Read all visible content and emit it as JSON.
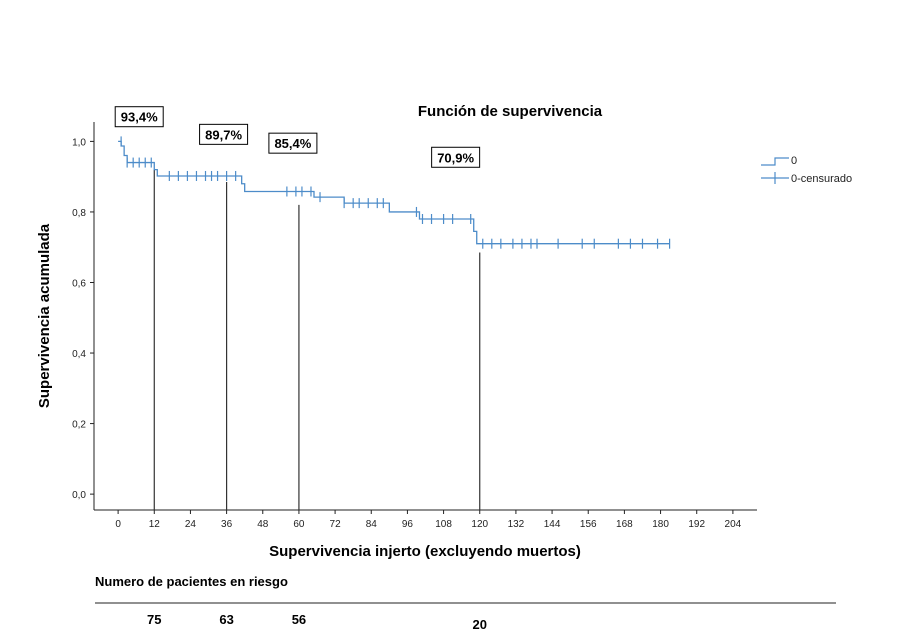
{
  "chart_data": {
    "type": "line",
    "title": "Función de supervivencia",
    "xlabel": "Supervivencia injerto (excluyendo muertos)",
    "ylabel": "Supervivencia acumulada",
    "xlim": [
      -8,
      212
    ],
    "ylim": [
      -0.045,
      1.055
    ],
    "x_ticks": [
      0,
      12,
      24,
      36,
      48,
      60,
      72,
      84,
      96,
      108,
      120,
      132,
      144,
      156,
      168,
      180,
      192,
      204
    ],
    "y_ticks": [
      0.0,
      0.2,
      0.4,
      0.6,
      0.8,
      1.0
    ],
    "y_tick_labels": [
      "0,0",
      "0,2",
      "0,4",
      "0,6",
      "0,8",
      "1,0"
    ],
    "grid": false,
    "legend_position": "top-right",
    "series": [
      {
        "name": "0",
        "color": "#4d8cc9",
        "steps": [
          [
            0,
            1.0
          ],
          [
            1,
            0.987
          ],
          [
            2,
            0.96
          ],
          [
            3,
            0.94
          ],
          [
            12,
            0.92
          ],
          [
            13,
            0.902
          ],
          [
            41,
            0.88
          ],
          [
            42,
            0.858
          ],
          [
            65,
            0.842
          ],
          [
            75,
            0.825
          ],
          [
            90,
            0.8
          ],
          [
            100,
            0.78
          ],
          [
            118,
            0.745
          ],
          [
            119,
            0.71
          ],
          [
            183,
            0.71
          ]
        ]
      },
      {
        "name": "0-censurado",
        "color": "#4d8cc9",
        "censored": [
          [
            1,
            1.0
          ],
          [
            3,
            0.94
          ],
          [
            5,
            0.94
          ],
          [
            7,
            0.94
          ],
          [
            9,
            0.94
          ],
          [
            11,
            0.94
          ],
          [
            17,
            0.902
          ],
          [
            20,
            0.902
          ],
          [
            23,
            0.902
          ],
          [
            26,
            0.902
          ],
          [
            29,
            0.902
          ],
          [
            31,
            0.902
          ],
          [
            33,
            0.902
          ],
          [
            36,
            0.902
          ],
          [
            39,
            0.902
          ],
          [
            56,
            0.858
          ],
          [
            59,
            0.858
          ],
          [
            61,
            0.858
          ],
          [
            64,
            0.858
          ],
          [
            67,
            0.842
          ],
          [
            75,
            0.825
          ],
          [
            78,
            0.825
          ],
          [
            80,
            0.825
          ],
          [
            83,
            0.825
          ],
          [
            86,
            0.825
          ],
          [
            88,
            0.825
          ],
          [
            99,
            0.8
          ],
          [
            101,
            0.78
          ],
          [
            104,
            0.78
          ],
          [
            108,
            0.78
          ],
          [
            111,
            0.78
          ],
          [
            117,
            0.78
          ],
          [
            121,
            0.71
          ],
          [
            124,
            0.71
          ],
          [
            127,
            0.71
          ],
          [
            131,
            0.71
          ],
          [
            134,
            0.71
          ],
          [
            137,
            0.71
          ],
          [
            139,
            0.71
          ],
          [
            146,
            0.71
          ],
          [
            154,
            0.71
          ],
          [
            158,
            0.71
          ],
          [
            166,
            0.71
          ],
          [
            170,
            0.71
          ],
          [
            174,
            0.71
          ],
          [
            179,
            0.71
          ],
          [
            183,
            0.71
          ]
        ]
      }
    ],
    "reference_lines": [
      {
        "x": 12,
        "y": 0.92,
        "label": "93,4%",
        "label_x": 7,
        "label_y": 1.07
      },
      {
        "x": 36,
        "y": 0.885,
        "label": "89,7%",
        "label_x": 35,
        "label_y": 1.02
      },
      {
        "x": 60,
        "y": 0.82,
        "label": "85,4%",
        "label_x": 58,
        "label_y": 0.995
      },
      {
        "x": 120,
        "y": 0.685,
        "label": "70,9%",
        "label_x": 112,
        "label_y": 0.955
      }
    ],
    "risk_table": {
      "title": "Numero de pacientes en riesgo",
      "entries": [
        {
          "x": 12,
          "value": "75"
        },
        {
          "x": 36,
          "value": "63"
        },
        {
          "x": 60,
          "value": "56"
        },
        {
          "x": 120,
          "value": "20"
        }
      ]
    }
  }
}
